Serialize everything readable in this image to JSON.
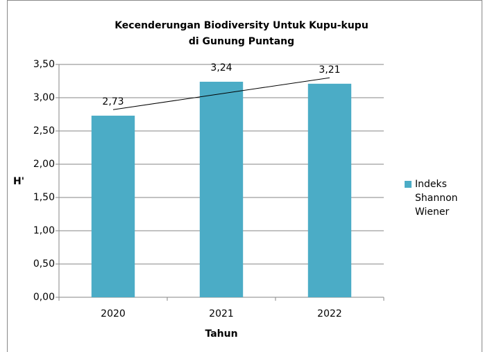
{
  "chart_data": {
    "type": "bar",
    "title": [
      "Kecenderungan Biodiversity Untuk Kupu-kupu",
      "di Gunung Puntang"
    ],
    "x_label": "Tahun",
    "y_label": "H'",
    "categories": [
      "2020",
      "2021",
      "2022"
    ],
    "series": [
      {
        "name": "Indeks Shannon Wiener",
        "color": "#4bacc6",
        "values": [
          2.73,
          3.24,
          3.21
        ],
        "value_labels": [
          "2,73",
          "3,24",
          "3,21"
        ]
      }
    ],
    "ylim": [
      0,
      3.5
    ],
    "yticks": [
      {
        "value": 0,
        "label": "0,00"
      },
      {
        "value": 0.5,
        "label": "0,50"
      },
      {
        "value": 1,
        "label": "1,00"
      },
      {
        "value": 1.5,
        "label": "1,50"
      },
      {
        "value": 2,
        "label": "2,00"
      },
      {
        "value": 2.5,
        "label": "2,50"
      },
      {
        "value": 3,
        "label": "3,00"
      },
      {
        "value": 3.5,
        "label": "3,50"
      }
    ],
    "grid": true,
    "trendline": "linear",
    "legend": "right"
  }
}
